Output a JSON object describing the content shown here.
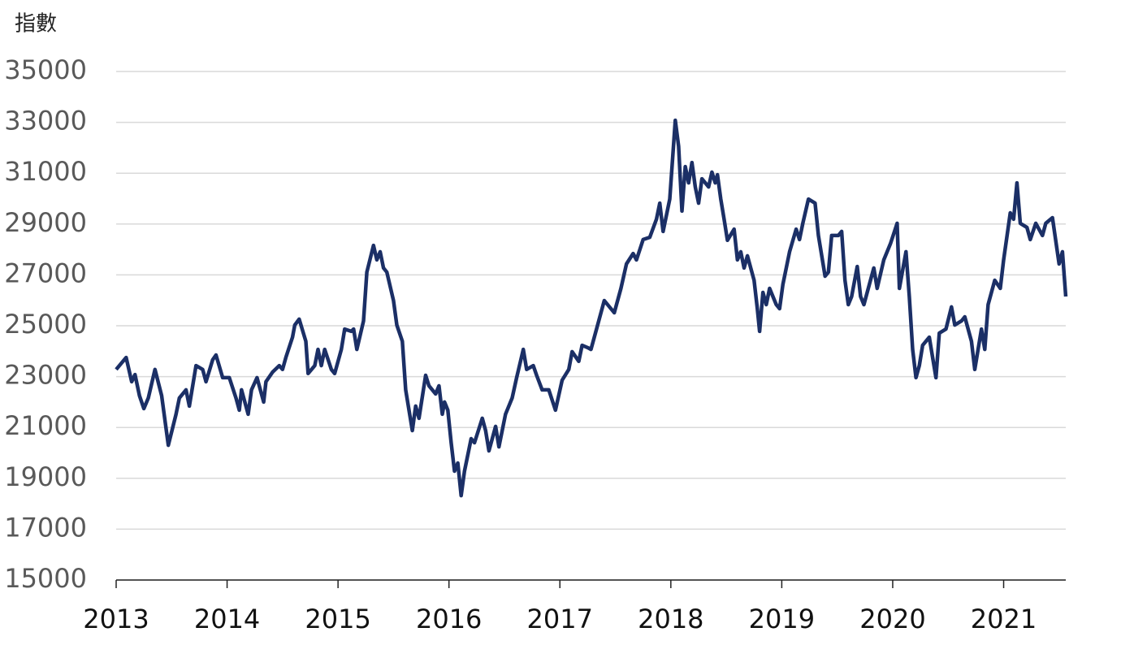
{
  "chart_data": {
    "type": "line",
    "y_axis_label": "指數",
    "color": "#1b2f66",
    "grid": true,
    "xlim": [
      2013,
      2021.56
    ],
    "xticks": [
      2013,
      2014,
      2015,
      2016,
      2017,
      2018,
      2019,
      2020,
      2021
    ],
    "ylim": [
      15000,
      35000
    ],
    "yticks": [
      15000,
      17000,
      19000,
      21000,
      23000,
      25000,
      27000,
      29000,
      31000,
      33000,
      35000
    ],
    "x": [
      2013.0,
      2013.09,
      2013.14,
      2013.17,
      2013.21,
      2013.25,
      2013.29,
      2013.35,
      2013.41,
      2013.47,
      2013.54,
      2013.57,
      2013.63,
      2013.66,
      2013.72,
      2013.78,
      2013.81,
      2013.87,
      2013.9,
      2013.96,
      2014.02,
      2014.08,
      2014.11,
      2014.13,
      2014.19,
      2014.22,
      2014.27,
      2014.33,
      2014.35,
      2014.41,
      2014.47,
      2014.5,
      2014.53,
      2014.59,
      2014.61,
      2014.65,
      2014.71,
      2014.73,
      2014.79,
      2014.82,
      2014.85,
      2014.88,
      2014.94,
      2014.97,
      2015.03,
      2015.06,
      2015.12,
      2015.14,
      2015.17,
      2015.23,
      2015.26,
      2015.32,
      2015.35,
      2015.38,
      2015.41,
      2015.44,
      2015.5,
      2015.53,
      2015.58,
      2015.61,
      2015.67,
      2015.7,
      2015.73,
      2015.79,
      2015.82,
      2015.88,
      2015.91,
      2015.94,
      2015.96,
      2015.99,
      2016.02,
      2016.05,
      2016.08,
      2016.11,
      2016.14,
      2016.2,
      2016.23,
      2016.3,
      2016.33,
      2016.36,
      2016.39,
      2016.42,
      2016.45,
      2016.51,
      2016.57,
      2016.61,
      2016.67,
      2016.7,
      2016.76,
      2016.79,
      2016.84,
      2016.9,
      2016.96,
      2017.02,
      2017.08,
      2017.11,
      2017.17,
      2017.2,
      2017.25,
      2017.28,
      2017.34,
      2017.4,
      2017.46,
      2017.49,
      2017.55,
      2017.6,
      2017.66,
      2017.69,
      2017.75,
      2017.81,
      2017.87,
      2017.9,
      2017.93,
      2017.99,
      2018.04,
      2018.07,
      2018.1,
      2018.13,
      2018.16,
      2018.19,
      2018.22,
      2018.25,
      2018.28,
      2018.34,
      2018.37,
      2018.4,
      2018.42,
      2018.45,
      2018.48,
      2018.51,
      2018.57,
      2018.6,
      2018.63,
      2018.66,
      2018.69,
      2018.75,
      2018.78,
      2018.8,
      2018.83,
      2018.86,
      2018.89,
      2018.95,
      2018.98,
      2019.01,
      2019.07,
      2019.13,
      2019.16,
      2019.19,
      2019.24,
      2019.3,
      2019.33,
      2019.39,
      2019.42,
      2019.45,
      2019.51,
      2019.54,
      2019.57,
      2019.6,
      2019.63,
      2019.68,
      2019.71,
      2019.74,
      2019.8,
      2019.83,
      2019.86,
      2019.92,
      2019.98,
      2020.04,
      2020.06,
      2020.12,
      2020.15,
      2020.18,
      2020.21,
      2020.24,
      2020.27,
      2020.33,
      2020.36,
      2020.39,
      2020.42,
      2020.48,
      2020.53,
      2020.56,
      2020.62,
      2020.65,
      2020.71,
      2020.74,
      2020.8,
      2020.83,
      2020.86,
      2020.92,
      2020.97,
      2021.0,
      2021.06,
      2021.09,
      2021.12,
      2021.15,
      2021.21,
      2021.24,
      2021.29,
      2021.35,
      2021.38,
      2021.44,
      2021.5,
      2021.53,
      2021.56
    ],
    "values": [
      23280,
      23750,
      22800,
      23080,
      22250,
      21740,
      22160,
      23280,
      22250,
      20300,
      21520,
      22160,
      22480,
      21840,
      23430,
      23280,
      22800,
      23660,
      23850,
      22960,
      22960,
      22160,
      21680,
      22480,
      21520,
      22480,
      22960,
      22000,
      22800,
      23180,
      23430,
      23280,
      23750,
      24550,
      25030,
      25260,
      24390,
      23120,
      23430,
      24070,
      23430,
      24070,
      23280,
      23120,
      24070,
      24870,
      24780,
      24870,
      24070,
      25190,
      27110,
      28160,
      27590,
      27910,
      27270,
      27110,
      25990,
      25030,
      24390,
      22480,
      20880,
      21840,
      21360,
      23050,
      22640,
      22320,
      22640,
      21520,
      22000,
      21680,
      20400,
      19280,
      19600,
      18320,
      19280,
      20560,
      20400,
      21360,
      20880,
      20080,
      20560,
      21040,
      20240,
      21520,
      22160,
      22960,
      24070,
      23280,
      23430,
      23050,
      22480,
      22480,
      21680,
      22860,
      23280,
      23980,
      23600,
      24230,
      24140,
      24070,
      25030,
      25990,
      25670,
      25510,
      26470,
      27430,
      27840,
      27590,
      28390,
      28480,
      29190,
      29820,
      28710,
      29980,
      33080,
      32060,
      29510,
      31260,
      30620,
      31420,
      30460,
      29820,
      30780,
      30460,
      31040,
      30620,
      30940,
      29980,
      29190,
      28360,
      28800,
      27590,
      27910,
      27270,
      27750,
      26790,
      25670,
      24780,
      26310,
      25830,
      26470,
      25830,
      25670,
      26630,
      27910,
      28800,
      28390,
      29030,
      29980,
      29820,
      28550,
      26950,
      27110,
      28550,
      28550,
      28710,
      26790,
      25830,
      26150,
      27330,
      26150,
      25830,
      26790,
      27270,
      26470,
      27590,
      28230,
      29030,
      26470,
      27910,
      26150,
      24070,
      22960,
      23430,
      24230,
      24550,
      23750,
      22960,
      24710,
      24870,
      25740,
      25030,
      25190,
      25350,
      24390,
      23280,
      24870,
      24070,
      25830,
      26790,
      26470,
      27590,
      29440,
      29190,
      30620,
      29030,
      28870,
      28390,
      29030,
      28550,
      29030,
      29250,
      27430,
      27910,
      26150
    ]
  }
}
